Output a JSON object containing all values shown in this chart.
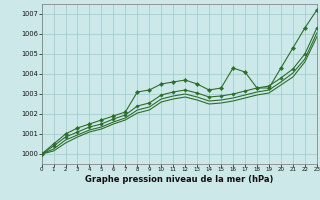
{
  "bg_color": "#cce8e8",
  "grid_color": "#99cccc",
  "line_color": "#2d6e2d",
  "xlim": [
    0,
    23
  ],
  "ylim": [
    999.5,
    1007.5
  ],
  "yticks": [
    1000,
    1001,
    1002,
    1003,
    1004,
    1005,
    1006,
    1007
  ],
  "xticks": [
    0,
    1,
    2,
    3,
    4,
    5,
    6,
    7,
    8,
    9,
    10,
    11,
    12,
    13,
    14,
    15,
    16,
    17,
    18,
    19,
    20,
    21,
    22,
    23
  ],
  "line1_x": [
    0,
    1,
    2,
    3,
    4,
    5,
    6,
    7,
    8,
    9,
    10,
    11,
    12,
    13,
    14,
    15,
    16,
    17,
    18,
    19,
    20,
    21,
    22,
    23
  ],
  "line1_y": [
    1000.0,
    1000.5,
    1001.0,
    1001.3,
    1001.5,
    1001.7,
    1001.9,
    1002.1,
    1003.1,
    1003.2,
    1003.5,
    1003.6,
    1003.7,
    1003.5,
    1003.2,
    1003.3,
    1004.3,
    1004.1,
    1003.3,
    1003.3,
    1004.3,
    1005.3,
    1006.3,
    1007.2
  ],
  "line2_x": [
    0,
    1,
    2,
    3,
    4,
    5,
    6,
    7,
    8,
    9,
    10,
    11,
    12,
    13,
    14,
    15,
    16,
    17,
    18,
    19,
    20,
    21,
    22,
    23
  ],
  "line2_y": [
    1000.0,
    1000.4,
    1000.85,
    1001.1,
    1001.35,
    1001.5,
    1001.75,
    1001.95,
    1002.4,
    1002.55,
    1002.95,
    1003.1,
    1003.2,
    1003.05,
    1002.85,
    1002.9,
    1003.0,
    1003.15,
    1003.3,
    1003.4,
    1003.8,
    1004.25,
    1005.0,
    1006.3
  ],
  "line3_x": [
    0,
    1,
    2,
    3,
    4,
    5,
    6,
    7,
    8,
    9,
    10,
    11,
    12,
    13,
    14,
    15,
    16,
    17,
    18,
    19,
    20,
    21,
    22,
    23
  ],
  "line3_y": [
    1000.0,
    1000.25,
    1000.7,
    1000.95,
    1001.2,
    1001.35,
    1001.6,
    1001.8,
    1002.2,
    1002.35,
    1002.75,
    1002.9,
    1003.0,
    1002.85,
    1002.65,
    1002.7,
    1002.8,
    1002.95,
    1003.1,
    1003.2,
    1003.6,
    1004.05,
    1004.75,
    1006.05
  ],
  "line4_x": [
    0,
    1,
    2,
    3,
    4,
    5,
    6,
    7,
    8,
    9,
    10,
    11,
    12,
    13,
    14,
    15,
    16,
    17,
    18,
    19,
    20,
    21,
    22,
    23
  ],
  "line4_y": [
    1000.0,
    1000.15,
    1000.55,
    1000.85,
    1001.1,
    1001.25,
    1001.5,
    1001.7,
    1002.05,
    1002.2,
    1002.6,
    1002.75,
    1002.85,
    1002.7,
    1002.5,
    1002.55,
    1002.65,
    1002.8,
    1002.95,
    1003.05,
    1003.45,
    1003.85,
    1004.6,
    1005.85
  ],
  "xlabel": "Graphe pression niveau de la mer (hPa)",
  "xlabel_fontsize": 6.0,
  "ytick_fontsize": 4.8,
  "xtick_fontsize": 4.0
}
